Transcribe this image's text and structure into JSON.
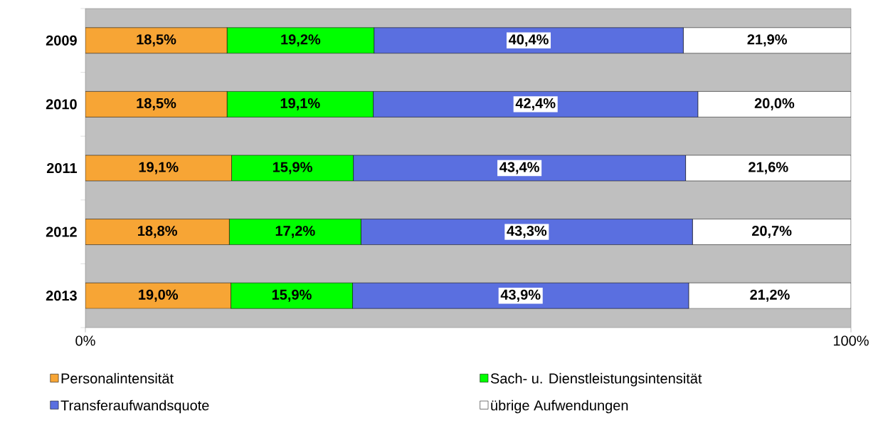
{
  "chart_data": {
    "type": "bar",
    "orientation": "horizontal",
    "stacked": true,
    "categories": [
      "2009",
      "2010",
      "2011",
      "2012",
      "2013"
    ],
    "series": [
      {
        "name": "Personalintensität",
        "color": "#f7a535",
        "values": [
          18.5,
          18.5,
          19.1,
          18.8,
          19.0
        ],
        "value_labels": [
          "18,5%",
          "18,5%",
          "19,1%",
          "18,8%",
          "19,0%"
        ]
      },
      {
        "name": "Sach- u. Dienstleistungsintensität",
        "color": "#00ff00",
        "values": [
          19.2,
          19.1,
          15.9,
          17.2,
          15.9
        ],
        "value_labels": [
          "19,2%",
          "19,1%",
          "15,9%",
          "17,2%",
          "15,9%"
        ]
      },
      {
        "name": "Transferaufwandsquote",
        "color": "#5a6fe0",
        "values": [
          40.4,
          42.4,
          43.4,
          43.3,
          43.9
        ],
        "value_labels": [
          "40,4%",
          "42,4%",
          "43,4%",
          "43,3%",
          "43,9%"
        ]
      },
      {
        "name": "übrige Aufwendungen",
        "color": "#ffffff",
        "values": [
          21.9,
          20.0,
          21.6,
          20.7,
          21.2
        ],
        "value_labels": [
          "21,9%",
          "20,0%",
          "21,6%",
          "20,7%",
          "21,2%"
        ]
      }
    ],
    "xlim": [
      0,
      100
    ],
    "xticks": [
      {
        "value": 0,
        "label": "0%"
      },
      {
        "value": 100,
        "label": "100%"
      }
    ],
    "legend": "bottom",
    "grid": false
  }
}
